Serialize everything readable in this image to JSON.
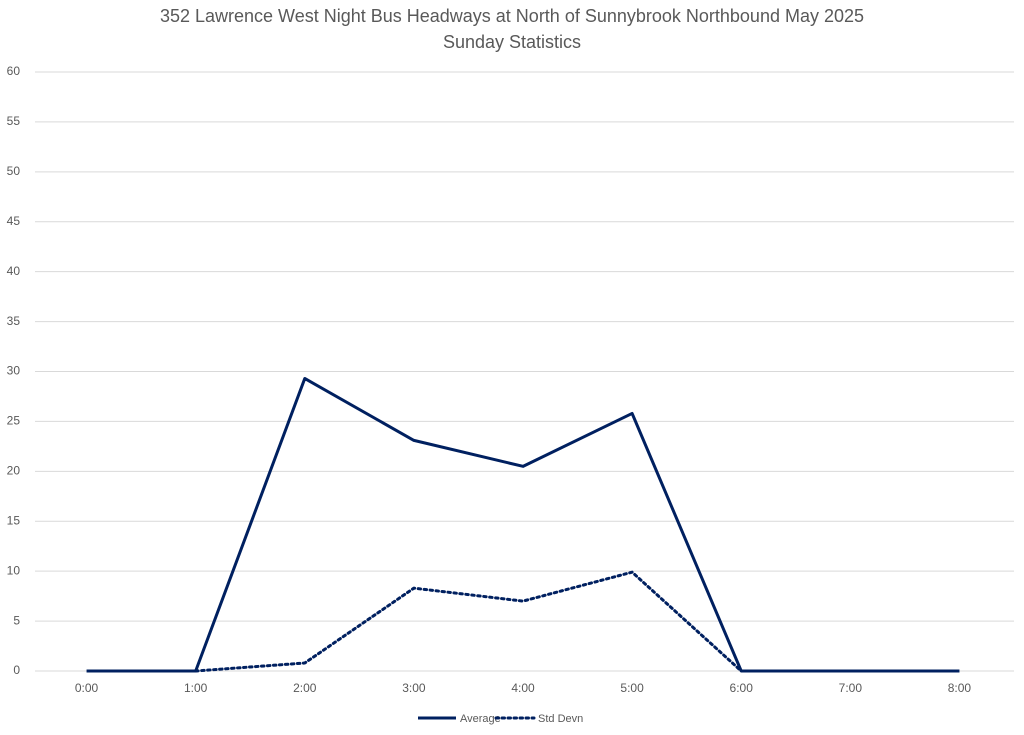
{
  "chart_data": {
    "type": "line",
    "title": "352 Lawrence West Night Bus Headways at North of Sunnybrook Northbound May 2025",
    "subtitle": "Sunday Statistics",
    "categories": [
      "0:00",
      "1:00",
      "2:00",
      "3:00",
      "4:00",
      "5:00",
      "6:00",
      "7:00",
      "8:00"
    ],
    "series": [
      {
        "name": "Average",
        "color": "#002060",
        "dash": "solid",
        "values": [
          0,
          0,
          29.3,
          23.1,
          20.5,
          25.8,
          0,
          0,
          0
        ]
      },
      {
        "name": "Std Devn",
        "color": "#002060",
        "dash": "dotted",
        "values": [
          null,
          0,
          0.8,
          8.3,
          7.0,
          9.9,
          0,
          null,
          null
        ]
      }
    ],
    "ylim": [
      0,
      60
    ],
    "yticks": [
      0,
      5,
      10,
      15,
      20,
      25,
      30,
      35,
      40,
      45,
      50,
      55,
      60
    ],
    "grid": true,
    "legend": "bottom"
  }
}
